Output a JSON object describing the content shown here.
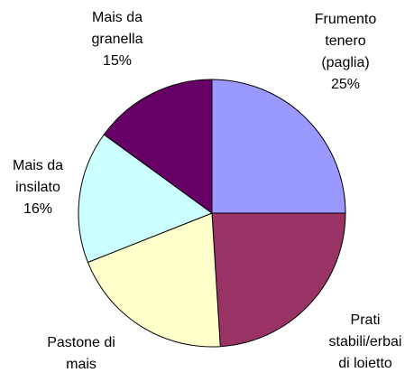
{
  "chart_data": {
    "type": "pie",
    "categories": [
      "Frumento\ntenero\n(paglia)",
      "Prati\nstabili/erbai\ndi loietto",
      "Pastone di\nmais",
      "Mais da\ninsilato",
      "Mais da\ngranella"
    ],
    "values": [
      25,
      24,
      20,
      16,
      15
    ],
    "value_labels": [
      "25%",
      null,
      null,
      "16%",
      "15%"
    ],
    "colors": [
      "#9999ff",
      "#993366",
      "#ffffcc",
      "#ccffff",
      "#660066"
    ]
  }
}
